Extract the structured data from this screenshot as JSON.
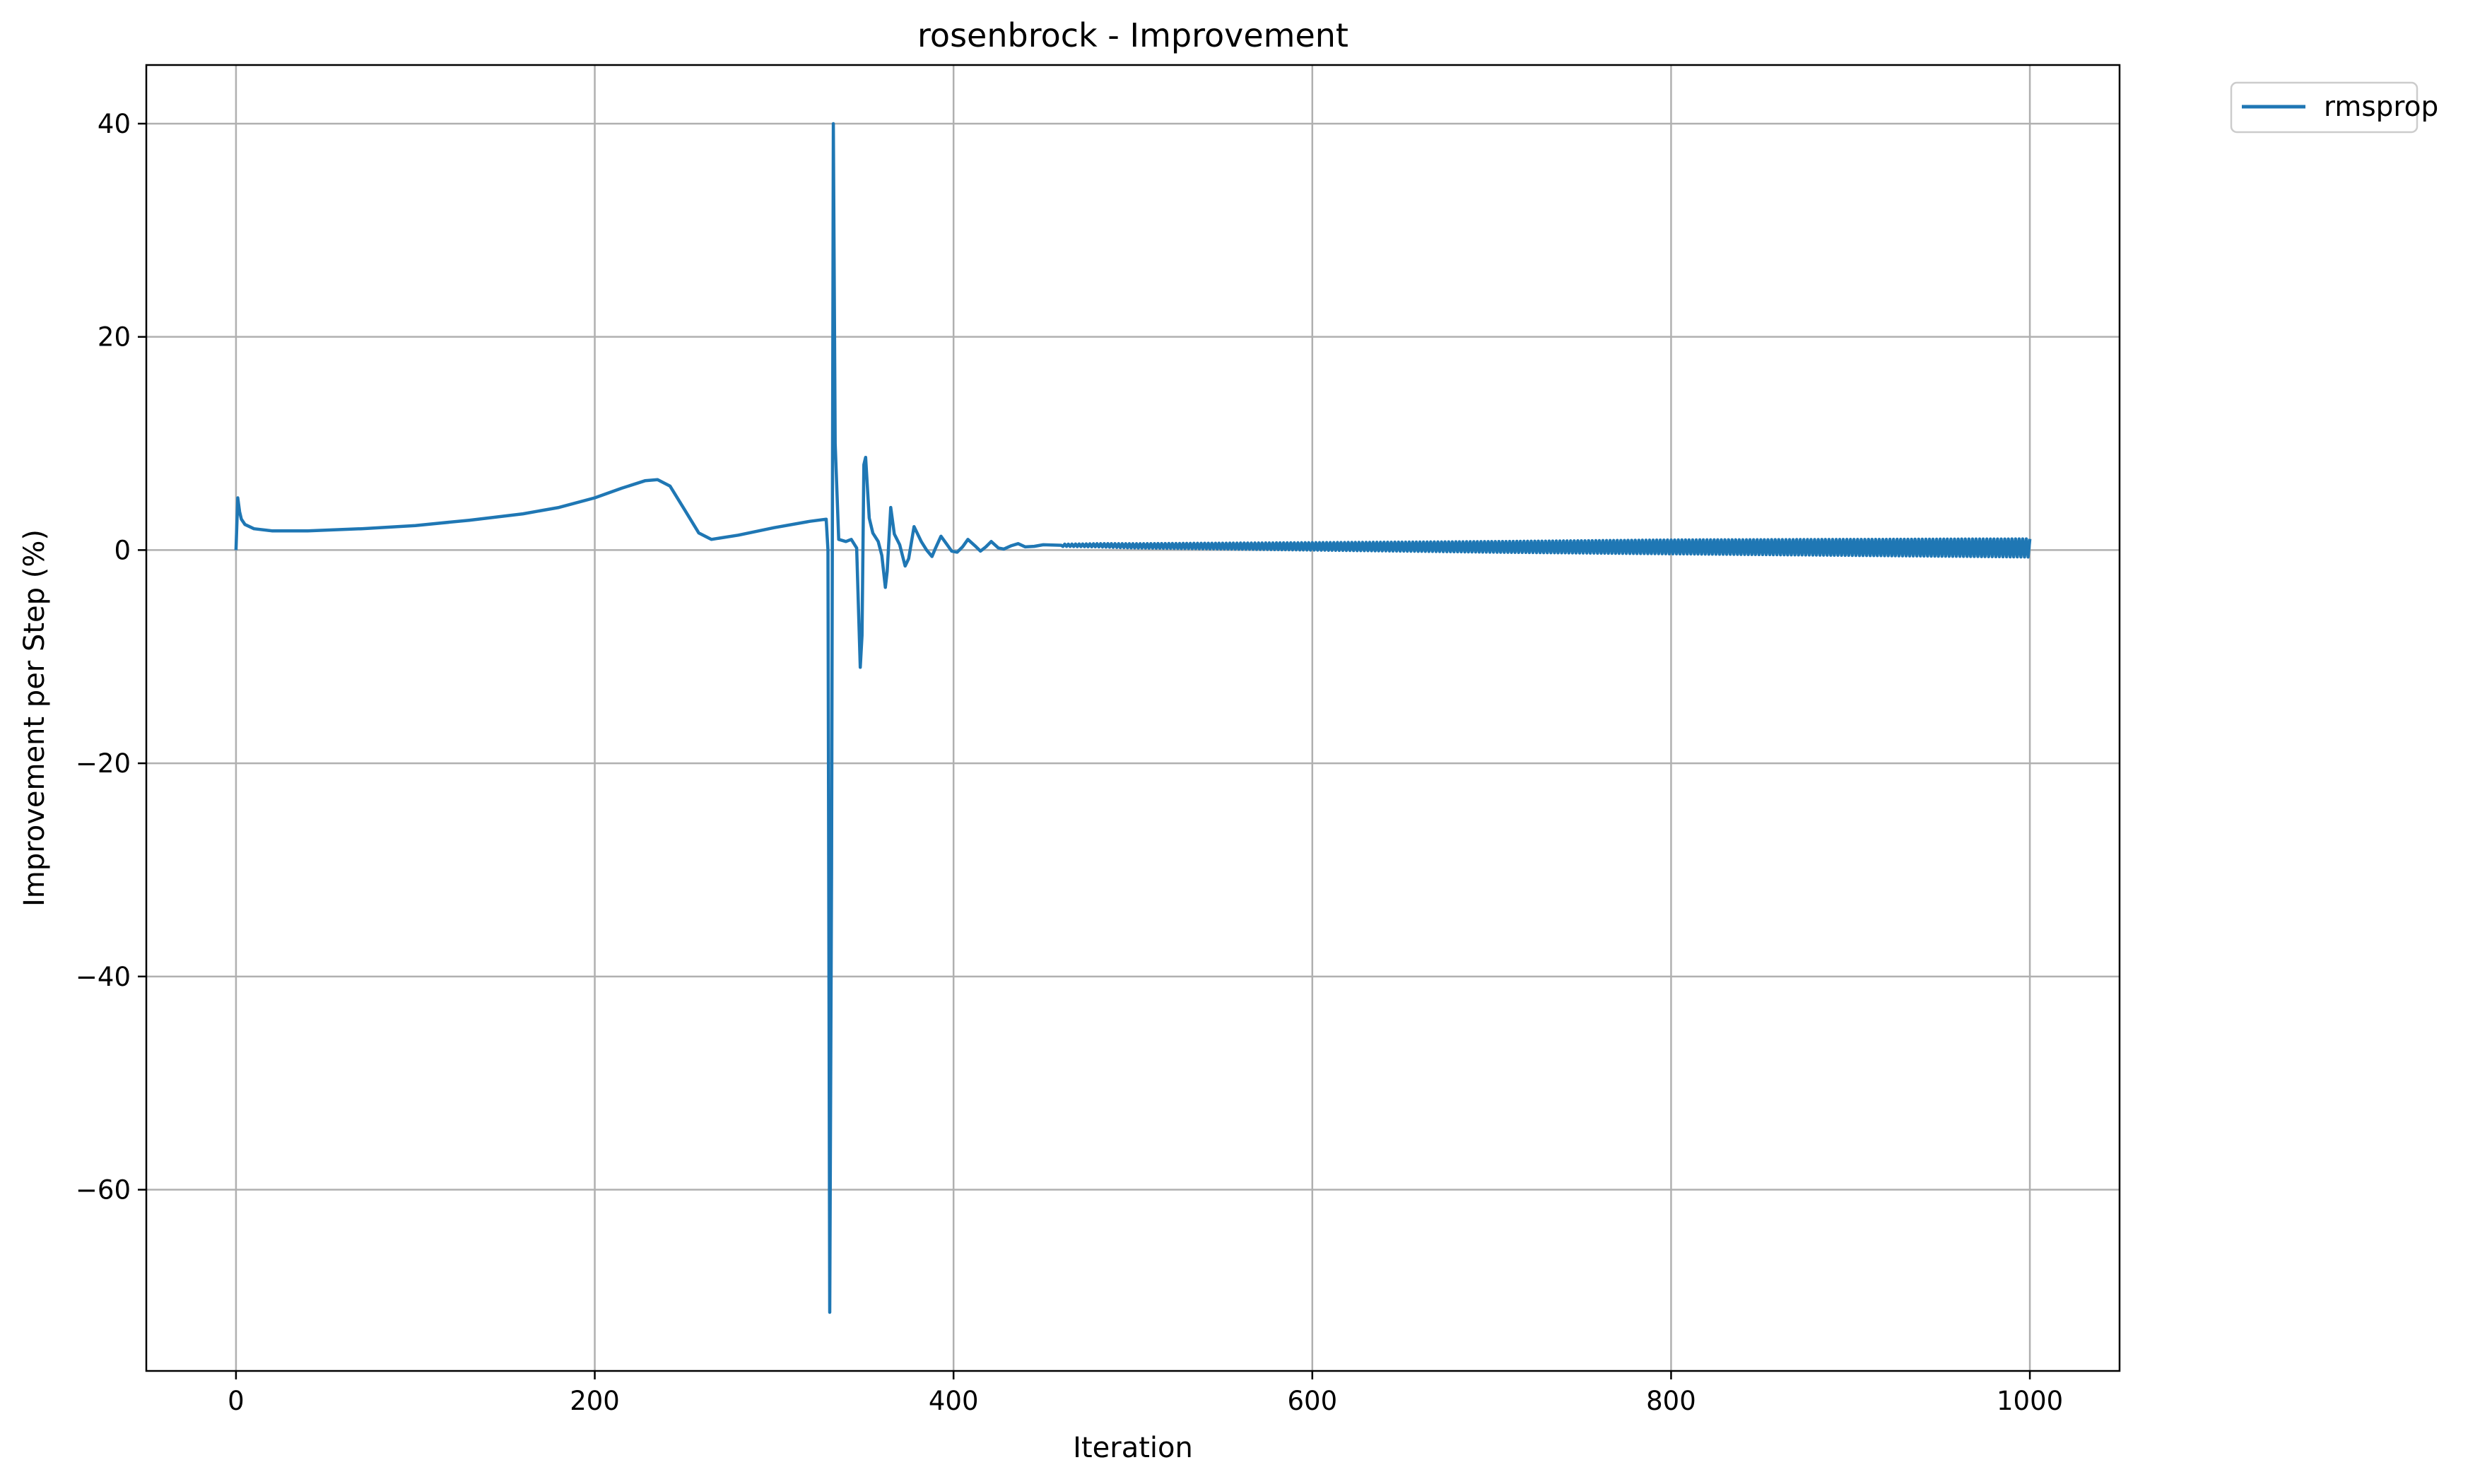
{
  "chart_data": {
    "type": "line",
    "title": "rosenbrock - Improvement",
    "xlabel": "Iteration",
    "ylabel": "Improvement per Step (%)",
    "xlim": [
      -50,
      1050
    ],
    "ylim": [
      -77,
      45.5
    ],
    "x_ticks": [
      0,
      200,
      400,
      600,
      800,
      1000
    ],
    "y_ticks": [
      -60,
      -40,
      -20,
      0,
      20,
      40
    ],
    "x_tick_labels": [
      "0",
      "200",
      "400",
      "600",
      "800",
      "1000"
    ],
    "y_tick_labels": [
      "−60",
      "−40",
      "−20",
      "0",
      "20",
      "40"
    ],
    "grid": true,
    "legend_position": "outside-top-right",
    "series": [
      {
        "name": "rmsprop",
        "color": "#1f77b4",
        "points": [
          [
            0,
            0
          ],
          [
            1,
            4.9
          ],
          [
            2,
            3.6
          ],
          [
            3,
            2.9
          ],
          [
            5,
            2.4
          ],
          [
            10,
            2.0
          ],
          [
            20,
            1.8
          ],
          [
            40,
            1.8
          ],
          [
            70,
            2.0
          ],
          [
            100,
            2.3
          ],
          [
            130,
            2.8
          ],
          [
            160,
            3.4
          ],
          [
            180,
            4.0
          ],
          [
            200,
            4.9
          ],
          [
            215,
            5.8
          ],
          [
            228,
            6.5
          ],
          [
            235,
            6.6
          ],
          [
            242,
            6.0
          ],
          [
            250,
            3.8
          ],
          [
            258,
            1.6
          ],
          [
            265,
            1.0
          ],
          [
            280,
            1.4
          ],
          [
            300,
            2.1
          ],
          [
            320,
            2.7
          ],
          [
            329,
            2.9
          ],
          [
            330,
            0
          ],
          [
            331,
            -71.5
          ],
          [
            332,
            -30
          ],
          [
            333,
            40
          ],
          [
            334,
            10
          ],
          [
            336,
            1.0
          ],
          [
            340,
            0.8
          ],
          [
            343,
            1.0
          ],
          [
            346,
            0.2
          ],
          [
            348,
            -11
          ],
          [
            349,
            -8
          ],
          [
            350,
            8.0
          ],
          [
            351,
            8.7
          ],
          [
            353,
            3.0
          ],
          [
            355,
            1.6
          ],
          [
            358,
            0.8
          ],
          [
            360,
            -0.5
          ],
          [
            362,
            -3.5
          ],
          [
            363,
            -2
          ],
          [
            365,
            4.0
          ],
          [
            367,
            1.5
          ],
          [
            370,
            0.5
          ],
          [
            373,
            -1.5
          ],
          [
            375,
            -0.8
          ],
          [
            378,
            2.2
          ],
          [
            382,
            0.8
          ],
          [
            385,
            0.0
          ],
          [
            388,
            -0.6
          ],
          [
            390,
            0.2
          ],
          [
            393,
            1.3
          ],
          [
            396,
            0.6
          ],
          [
            399,
            -0.1
          ],
          [
            402,
            -0.2
          ],
          [
            405,
            0.3
          ],
          [
            408,
            1.0
          ],
          [
            412,
            0.4
          ],
          [
            415,
            -0.1
          ],
          [
            418,
            0.3
          ],
          [
            421,
            0.8
          ],
          [
            425,
            0.2
          ],
          [
            428,
            0.1
          ],
          [
            432,
            0.4
          ],
          [
            436,
            0.6
          ],
          [
            440,
            0.3
          ],
          [
            445,
            0.35
          ],
          [
            450,
            0.5
          ],
          [
            460,
            0.45
          ],
          [
            480,
            0.45
          ],
          [
            500,
            0.4
          ],
          [
            600,
            0.35
          ],
          [
            700,
            0.3
          ],
          [
            800,
            0.3
          ],
          [
            900,
            0.25
          ],
          [
            1000,
            0.2
          ]
        ],
        "oscillation_band": [
          [
            460,
            0.1
          ],
          [
            500,
            0.2
          ],
          [
            600,
            0.35
          ],
          [
            700,
            0.5
          ],
          [
            800,
            0.65
          ],
          [
            900,
            0.75
          ],
          [
            1000,
            0.85
          ]
        ]
      }
    ]
  }
}
